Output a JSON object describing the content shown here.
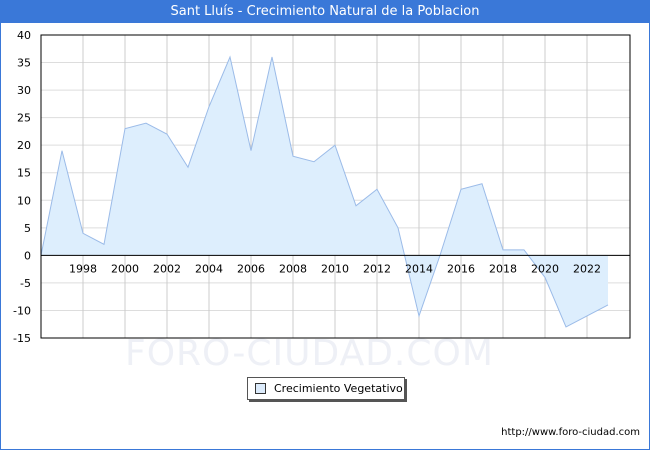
{
  "chart_data": {
    "type": "area",
    "title": "Sant Lluís - Crecimiento Natural de la Poblacion",
    "x": [
      1996,
      1997,
      1998,
      1999,
      2000,
      2001,
      2002,
      2003,
      2004,
      2005,
      2006,
      2007,
      2008,
      2009,
      2010,
      2011,
      2012,
      2013,
      2014,
      2015,
      2016,
      2017,
      2018,
      2019,
      2020,
      2021,
      2022,
      2023
    ],
    "series": [
      {
        "name": "Crecimiento Vegetativo",
        "values": [
          0,
          19,
          4,
          2,
          23,
          24,
          22,
          16,
          27,
          36,
          19,
          36,
          18,
          17,
          20,
          9,
          12,
          5,
          -11,
          0,
          12,
          13,
          1,
          1,
          -4,
          -13,
          -11,
          -9
        ]
      }
    ],
    "xticks": [
      "1998",
      "2000",
      "2002",
      "2004",
      "2006",
      "2008",
      "2010",
      "2012",
      "2014",
      "2016",
      "2018",
      "2020",
      "2022"
    ],
    "yticks": [
      "40",
      "35",
      "30",
      "25",
      "20",
      "15",
      "10",
      "5",
      "0",
      "-5",
      "-10",
      "-15"
    ],
    "ylim": [
      -15,
      40
    ],
    "xlim": [
      1996,
      2024
    ],
    "grid": true,
    "legend": "bottom-center",
    "colors": {
      "fill": "#ddeefd",
      "line": "#9bbbe8",
      "header": "#3a78d8"
    }
  },
  "watermark": "FORO-CIUDAD.COM",
  "url": "http://www.foro-ciudad.com"
}
